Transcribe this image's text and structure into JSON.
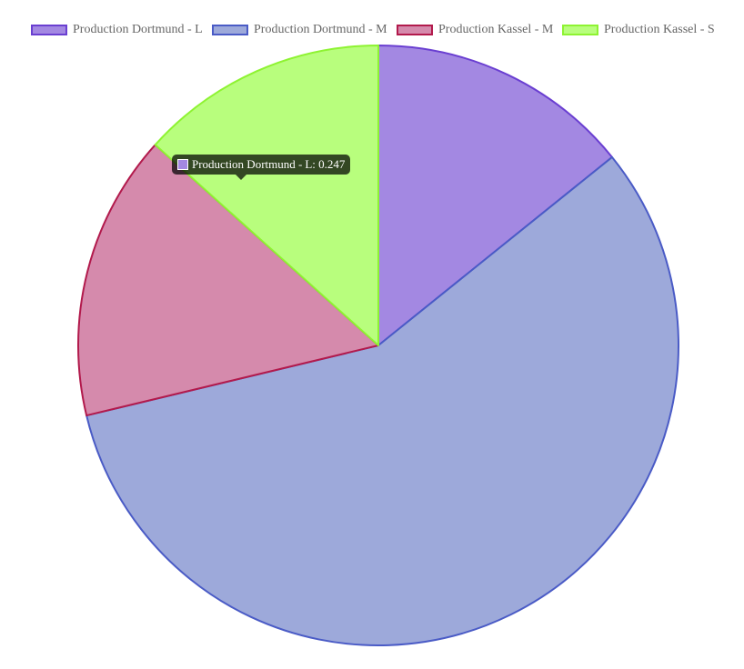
{
  "chart_data": {
    "type": "pie",
    "series": [
      {
        "name": "Production Dortmund - L",
        "value": 0.247,
        "color": "#a388e2",
        "border": "#6a3fd1"
      },
      {
        "name": "Production Dortmund - M",
        "value": 0.992,
        "color": "#9da9da",
        "border": "#4a5bc6"
      },
      {
        "name": "Production Kassel - M",
        "value": 0.268,
        "color": "#d58aac",
        "border": "#b21a4c"
      },
      {
        "name": "Production Kassel - S",
        "value": 0.232,
        "color": "#b8fe7d",
        "border": "#8ef332"
      }
    ],
    "legend_position": "top",
    "tooltip": {
      "text": "Production Dortmund - L: 0.247",
      "visible_text": "Production Dortmund - ",
      "value_text": "L: 0.247"
    }
  }
}
